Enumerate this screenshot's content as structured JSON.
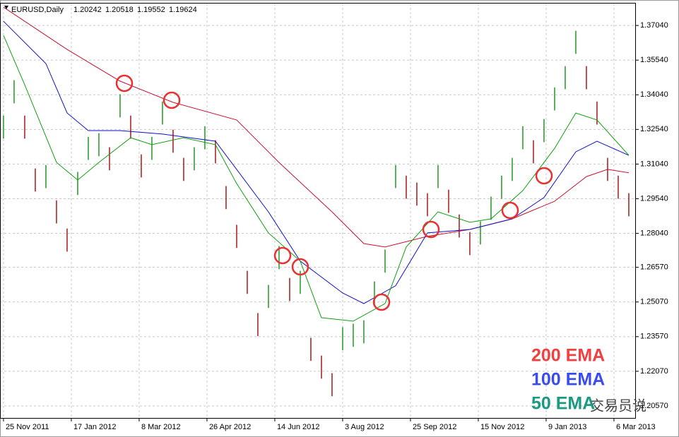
{
  "chart_data": {
    "type": "ohlc",
    "title": "EURUSD,Daily",
    "quote": [
      1.20242,
      1.20518,
      1.19552,
      1.19624
    ],
    "watermark": "交易员说",
    "up_color": "#1f9a1f",
    "down_color": "#a81818",
    "grid": true,
    "xlim": [
      -0.33,
      59.67
    ],
    "ylim": [
      1.2005,
      1.3799
    ],
    "yticks": [
      {
        "value": 1.3704,
        "label": "1.37040"
      },
      {
        "value": 1.3554,
        "label": "1.35540"
      },
      {
        "value": 1.3404,
        "label": "1.34040"
      },
      {
        "value": 1.3254,
        "label": "1.32540"
      },
      {
        "value": 1.3104,
        "label": "1.31040"
      },
      {
        "value": 1.2954,
        "label": "1.29540"
      },
      {
        "value": 1.2804,
        "label": "1.28040"
      },
      {
        "value": 1.2657,
        "label": "1.26570"
      },
      {
        "value": 1.2507,
        "label": "1.25070"
      },
      {
        "value": 1.2357,
        "label": "1.23570"
      },
      {
        "value": 1.2207,
        "label": "1.22070"
      },
      {
        "value": 1.2057,
        "label": "1.20570"
      }
    ],
    "xticks": [
      {
        "value": 0,
        "label": "25 Nov 2011"
      },
      {
        "value": 6.4,
        "label": "17 Jan 2012"
      },
      {
        "value": 12.8,
        "label": "8 Mar 2012"
      },
      {
        "value": 19.2,
        "label": "26 Apr 2012"
      },
      {
        "value": 25.6,
        "label": "14 Jun 2012"
      },
      {
        "value": 32,
        "label": "3 Aug 2012"
      },
      {
        "value": 38.4,
        "label": "25 Sep 2012"
      },
      {
        "value": 44.8,
        "label": "15 Nov 2012"
      },
      {
        "value": 51.2,
        "label": "9 Jan 2013"
      },
      {
        "value": 57.6,
        "label": "6 Mar 2013"
      }
    ],
    "high": [
      1.3314,
      1.3467,
      1.3314,
      1.3085,
      1.31,
      1.2947,
      1.2825,
      1.307,
      1.3222,
      1.3238,
      1.3177,
      1.3406,
      1.3314,
      1.3146,
      1.3222,
      1.3375,
      1.3253,
      1.3131,
      1.3177,
      1.3268,
      1.3207,
      1.3009,
      1.2841,
      1.2642,
      1.2459,
      1.2581,
      1.2749,
      1.2611,
      1.2642,
      1.2352,
      1.2275,
      1.2199,
      1.2398,
      1.2413,
      1.2428,
      1.2596,
      1.2734,
      1.31,
      1.3054,
      1.3024,
      1.2978,
      1.31,
      1.2993,
      1.2886,
      1.281,
      1.2856,
      1.2963,
      1.3054,
      1.3131,
      1.3268,
      1.3207,
      1.3299,
      1.3436,
      1.3528,
      1.3681,
      1.3528,
      1.3375,
      1.3131,
      1.3054,
      1.2978
    ],
    "low": [
      1.3214,
      1.3367,
      1.3214,
      1.2985,
      1.3,
      1.2847,
      1.2725,
      1.297,
      1.3122,
      1.3138,
      1.3077,
      1.3306,
      1.3214,
      1.3046,
      1.3122,
      1.3275,
      1.3153,
      1.3031,
      1.3077,
      1.3168,
      1.3107,
      1.2909,
      1.2741,
      1.2542,
      1.2359,
      1.2481,
      1.2649,
      1.2511,
      1.2542,
      1.2252,
      1.2175,
      1.2099,
      1.2298,
      1.2313,
      1.2328,
      1.2496,
      1.2634,
      1.3,
      1.2954,
      1.2924,
      1.2878,
      1.3,
      1.2893,
      1.2786,
      1.271,
      1.2756,
      1.2863,
      1.2954,
      1.3031,
      1.3168,
      1.3107,
      1.3199,
      1.3336,
      1.3428,
      1.3581,
      1.3428,
      1.3275,
      1.3031,
      1.2954,
      1.2878
    ],
    "series": [
      {
        "name": "200 EMA",
        "color": "#c8102e",
        "label_color": "#f04040",
        "x": [
          0,
          6,
          11,
          16,
          22,
          26,
          31,
          34,
          36,
          40,
          44,
          48,
          52,
          55,
          57,
          59
        ],
        "values": [
          1.3783,
          1.36,
          1.3463,
          1.3371,
          1.3295,
          1.3111,
          1.2897,
          1.276,
          1.2745,
          1.2791,
          1.2821,
          1.2867,
          1.2943,
          1.305,
          1.3081,
          1.3066
        ]
      },
      {
        "name": "100 EMA",
        "color": "#1010c8",
        "label_color": "#3a4cf0",
        "x": [
          0,
          4,
          6,
          8,
          11,
          15,
          20,
          22,
          25,
          28,
          32,
          34,
          37,
          40,
          44,
          48,
          51,
          54,
          56,
          59
        ],
        "values": [
          1.3722,
          1.3539,
          1.3325,
          1.3249,
          1.3249,
          1.3234,
          1.3203,
          1.3081,
          1.2897,
          1.2684,
          1.2546,
          1.25,
          1.2577,
          1.2806,
          1.2821,
          1.2867,
          1.2959,
          1.3157,
          1.3203,
          1.3142
        ]
      },
      {
        "name": "50 EMA",
        "color": "#10a010",
        "label_color": "#1a9a80",
        "x": [
          0,
          2,
          5,
          7,
          9,
          12,
          14,
          17,
          20,
          22,
          25,
          28,
          30,
          33,
          36,
          38,
          41,
          44,
          46,
          49,
          52,
          54,
          56,
          59
        ],
        "values": [
          1.3661,
          1.3447,
          1.3111,
          1.3035,
          1.3111,
          1.3218,
          1.3188,
          1.3218,
          1.3188,
          1.302,
          1.2806,
          1.2684,
          1.2439,
          1.2424,
          1.25,
          1.2745,
          1.2897,
          1.2852,
          1.2867,
          1.2989,
          1.3172,
          1.3325,
          1.3295,
          1.3142
        ]
      }
    ]
  }
}
